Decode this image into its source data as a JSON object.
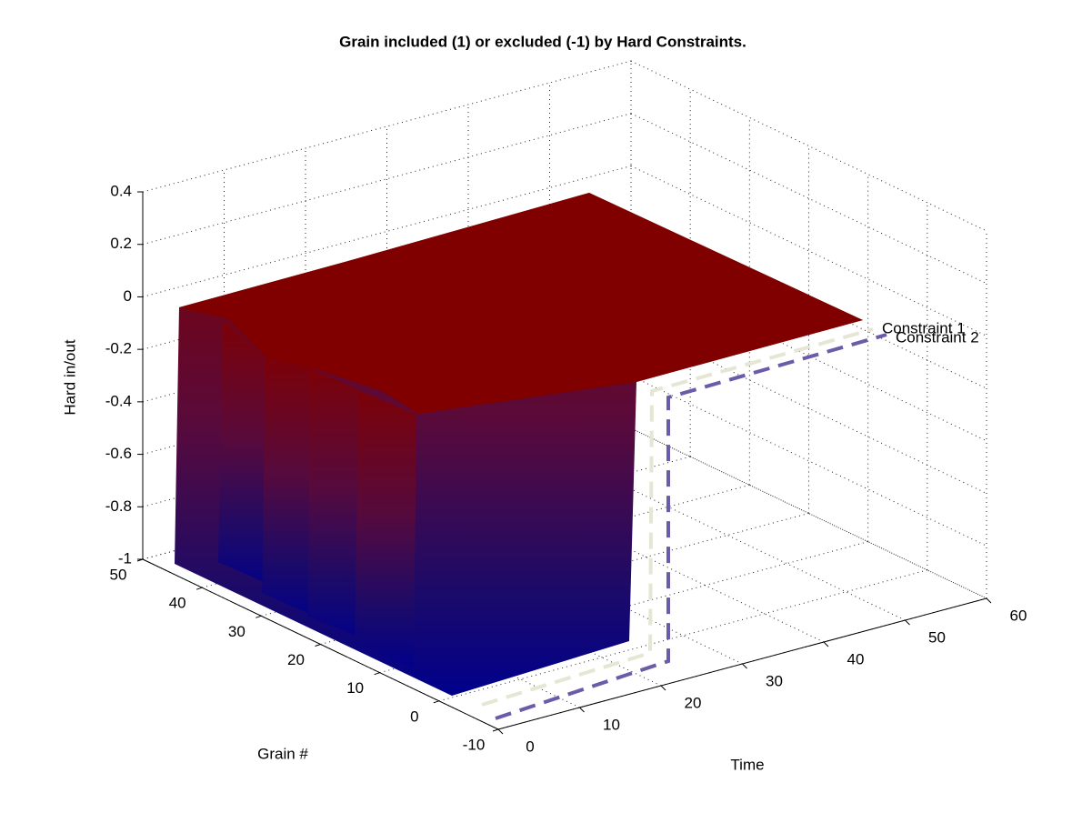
{
  "chart_data": {
    "type": "surface3d",
    "title": "Grain included (1) or excluded (-1) by Hard Constraints.",
    "xlabel": "Time",
    "ylabel": "Grain #",
    "zlabel": "Hard in/out",
    "xlim": [
      0,
      60
    ],
    "xticks": [
      0,
      10,
      20,
      30,
      40,
      50,
      60
    ],
    "ylim": [
      -10,
      50
    ],
    "yticks": [
      -10,
      0,
      10,
      20,
      30,
      40,
      50
    ],
    "zlim": [
      -1,
      0.4
    ],
    "zticks": [
      -1,
      -0.8,
      -0.6,
      -0.4,
      -0.2,
      0,
      0.2,
      0.4
    ],
    "grid": true,
    "series": [
      {
        "name": "Constraint 1",
        "color": "#e6e6d4"
      },
      {
        "name": "Constraint 2",
        "color": "#6b5ba8"
      }
    ]
  }
}
